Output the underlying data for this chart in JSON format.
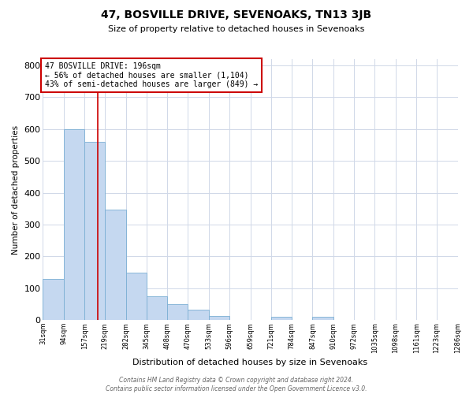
{
  "title": "47, BOSVILLE DRIVE, SEVENOAKS, TN13 3JB",
  "subtitle": "Size of property relative to detached houses in Sevenoaks",
  "xlabel": "Distribution of detached houses by size in Sevenoaks",
  "ylabel": "Number of detached properties",
  "bar_edges": [
    31,
    94,
    157,
    219,
    282,
    345,
    408,
    470,
    533,
    596,
    659,
    721,
    784,
    847,
    910,
    972,
    1035,
    1098,
    1161,
    1223,
    1286
  ],
  "bar_heights": [
    128,
    600,
    560,
    348,
    150,
    75,
    50,
    33,
    12,
    0,
    0,
    10,
    0,
    10,
    0,
    0,
    0,
    0,
    0,
    0
  ],
  "bar_color": "#c5d8f0",
  "bar_edge_color": "#7bafd4",
  "property_line_x": 196,
  "property_line_color": "#cc0000",
  "annotation_text": "47 BOSVILLE DRIVE: 196sqm\n← 56% of detached houses are smaller (1,104)\n43% of semi-detached houses are larger (849) →",
  "annotation_box_color": "#cc0000",
  "ylim": [
    0,
    820
  ],
  "yticks": [
    0,
    100,
    200,
    300,
    400,
    500,
    600,
    700,
    800
  ],
  "tick_labels": [
    "31sqm",
    "94sqm",
    "157sqm",
    "219sqm",
    "282sqm",
    "345sqm",
    "408sqm",
    "470sqm",
    "533sqm",
    "596sqm",
    "659sqm",
    "721sqm",
    "784sqm",
    "847sqm",
    "910sqm",
    "972sqm",
    "1035sqm",
    "1098sqm",
    "1161sqm",
    "1223sqm",
    "1286sqm"
  ],
  "footer_text": "Contains HM Land Registry data © Crown copyright and database right 2024.\nContains public sector information licensed under the Open Government Licence v3.0.",
  "background_color": "#ffffff",
  "grid_color": "#d0d8e8"
}
